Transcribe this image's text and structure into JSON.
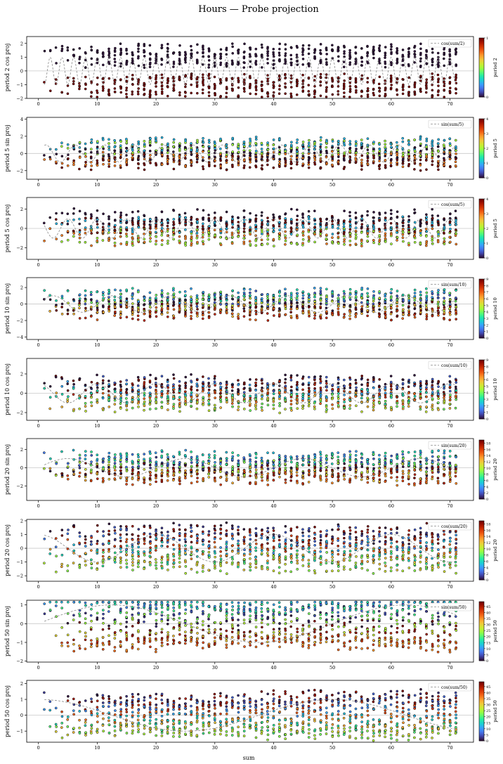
{
  "figure": {
    "title": "Hours — Probe projection",
    "xlabel": "sum"
  },
  "colormap": [
    "#30123b",
    "#4145ab",
    "#4675ed",
    "#39a2fc",
    "#1bcfd4",
    "#24eca6",
    "#61fc6c",
    "#a4fc3b",
    "#d1e834",
    "#f3c63a",
    "#fe9b2d",
    "#f36315",
    "#d93806",
    "#b11901",
    "#7a0402"
  ],
  "chart_data": [
    {
      "type": "scatter",
      "ylabel": "period 2  cos proj",
      "legend": "cos(sum/2)",
      "legend_loc": "top-right",
      "period": 2,
      "func": "cos",
      "amp": 1.0,
      "noise": 0.85,
      "colorbar_label": "period 2",
      "colorbar_ticks": [
        "0",
        "1"
      ],
      "colorbar_max": 1,
      "ylim": [
        -2,
        2.5
      ],
      "yticks": [
        -2,
        -1,
        0,
        1,
        2
      ],
      "xlim": [
        -2,
        74
      ],
      "xticks": [
        0,
        10,
        20,
        30,
        40,
        50,
        60,
        70
      ],
      "grid": false
    },
    {
      "type": "scatter",
      "ylabel": "period 5  sin proj",
      "legend": "sin(sum/5)",
      "legend_loc": "top-right",
      "period": 5,
      "func": "sin",
      "amp": 1.0,
      "noise": 0.9,
      "colorbar_label": "period 5",
      "colorbar_ticks": [
        "0",
        "1",
        "2",
        "3",
        "4"
      ],
      "colorbar_max": 4,
      "ylim": [
        -3,
        4.2
      ],
      "yticks": [
        -2,
        0,
        2,
        4
      ],
      "xlim": [
        -2,
        74
      ],
      "xticks": [
        0,
        10,
        20,
        30,
        40,
        50,
        60,
        70
      ],
      "grid": false
    },
    {
      "type": "scatter",
      "ylabel": "period 5  cos proj",
      "legend": "cos(sum/5)",
      "legend_loc": "top-right",
      "period": 5,
      "func": "cos",
      "amp": 1.0,
      "noise": 0.9,
      "colorbar_label": "period 5",
      "colorbar_ticks": [
        "0",
        "1",
        "2",
        "3",
        "4"
      ],
      "colorbar_max": 4,
      "ylim": [
        -3.2,
        3.2
      ],
      "yticks": [
        -2,
        0,
        2
      ],
      "xlim": [
        -2,
        74
      ],
      "xticks": [
        0,
        10,
        20,
        30,
        40,
        50,
        60,
        70
      ],
      "grid": false
    },
    {
      "type": "scatter",
      "ylabel": "period 10  sin proj",
      "legend": "sin(sum/10)",
      "legend_loc": "top-right",
      "period": 10,
      "func": "sin",
      "amp": 1.0,
      "noise": 0.9,
      "colorbar_label": "period 10",
      "colorbar_ticks": [
        "0",
        "1",
        "2",
        "3",
        "4",
        "5",
        "6",
        "7",
        "8",
        "9"
      ],
      "colorbar_max": 9,
      "ylim": [
        -4.3,
        3.2
      ],
      "yticks": [
        -4,
        -2,
        0,
        2
      ],
      "xlim": [
        -2,
        74
      ],
      "xticks": [
        0,
        10,
        20,
        30,
        40,
        50,
        60,
        70
      ],
      "grid": false
    },
    {
      "type": "scatter",
      "ylabel": "period 10  cos proj",
      "legend": "cos(sum/10)",
      "legend_loc": "top-right",
      "period": 10,
      "func": "cos",
      "amp": 1.0,
      "noise": 0.9,
      "colorbar_label": "period 10",
      "colorbar_ticks": [
        "0",
        "1",
        "2",
        "3",
        "4",
        "5",
        "6",
        "7",
        "8",
        "9"
      ],
      "colorbar_max": 9,
      "ylim": [
        -2.8,
        3.6
      ],
      "yticks": [
        -2,
        0,
        2
      ],
      "xlim": [
        -2,
        74
      ],
      "xticks": [
        0,
        10,
        20,
        30,
        40,
        50,
        60,
        70
      ],
      "grid": false
    },
    {
      "type": "scatter",
      "ylabel": "period 20  sin proj",
      "legend": "sin(sum/20)",
      "legend_loc": "top-right",
      "period": 20,
      "func": "sin",
      "amp": 1.0,
      "noise": 0.85,
      "colorbar_label": "period 20",
      "colorbar_ticks": [
        "0",
        "2",
        "4",
        "6",
        "8",
        "10",
        "12",
        "14",
        "16",
        "18"
      ],
      "colorbar_max": 19,
      "ylim": [
        -3.6,
        3.2
      ],
      "yticks": [
        -2,
        0,
        2
      ],
      "xlim": [
        -2,
        74
      ],
      "xticks": [
        0,
        10,
        20,
        30,
        40,
        50,
        60,
        70
      ],
      "grid": false
    },
    {
      "type": "scatter",
      "ylabel": "period 20  cos proj",
      "legend": "cos(sum/20)",
      "legend_loc": "top-right",
      "period": 20,
      "func": "cos",
      "amp": 1.0,
      "noise": 0.75,
      "colorbar_label": "period 20",
      "colorbar_ticks": [
        "0",
        "2",
        "4",
        "6",
        "8",
        "10",
        "12",
        "14",
        "16",
        "18"
      ],
      "colorbar_max": 19,
      "ylim": [
        -2.4,
        2.1
      ],
      "yticks": [
        -2,
        -1,
        0,
        1,
        2
      ],
      "xlim": [
        -2,
        74
      ],
      "xticks": [
        0,
        10,
        20,
        30,
        40,
        50,
        60,
        70
      ],
      "grid": false
    },
    {
      "type": "scatter",
      "ylabel": "period 50  sin proj",
      "legend": "sin(sum/50)",
      "legend_loc": "top-right",
      "period": 50,
      "func": "sin",
      "amp": 1.0,
      "noise": 0.35,
      "colorbar_label": "period 50",
      "colorbar_ticks": [
        "0",
        "5",
        "10",
        "15",
        "20",
        "25",
        "30",
        "35",
        "40",
        "45"
      ],
      "colorbar_max": 49,
      "ylim": [
        -2.05,
        1.25
      ],
      "yticks": [
        -2,
        -1,
        0,
        1
      ],
      "xlim": [
        -2,
        74
      ],
      "xticks": [
        0,
        10,
        20,
        30,
        40,
        50,
        60,
        70
      ],
      "grid": false
    },
    {
      "type": "scatter",
      "ylabel": "period 50  cos proj",
      "legend": "cos(sum/50)",
      "legend_loc": "top-right",
      "period": 50,
      "func": "cos",
      "amp": 1.0,
      "noise": 0.45,
      "colorbar_label": "period 50",
      "colorbar_ticks": [
        "0",
        "5",
        "10",
        "15",
        "20",
        "25",
        "30",
        "35",
        "40",
        "45"
      ],
      "colorbar_max": 49,
      "ylim": [
        -1.7,
        2.2
      ],
      "yticks": [
        -1,
        0,
        1,
        2
      ],
      "xlim": [
        -2,
        74
      ],
      "xticks": [
        0,
        10,
        20,
        30,
        40,
        50,
        60,
        70
      ],
      "grid": false
    }
  ]
}
